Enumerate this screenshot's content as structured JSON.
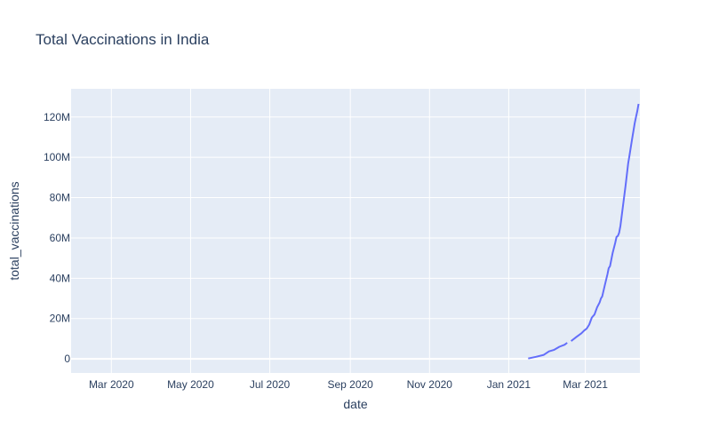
{
  "chart_data": {
    "type": "line",
    "title": "Total Vaccinations in India",
    "xlabel": "date",
    "ylabel": "total_vaccinations",
    "x_tick_labels": [
      "Mar 2020",
      "May 2020",
      "Jul 2020",
      "Sep 2020",
      "Nov 2020",
      "Jan 2021",
      "Mar 2021"
    ],
    "y_tick_labels": [
      "0",
      "20M",
      "40M",
      "60M",
      "80M",
      "100M",
      "120M"
    ],
    "x_ticks": [
      "2020-03-01",
      "2020-05-01",
      "2020-07-01",
      "2020-09-01",
      "2020-11-01",
      "2021-01-01",
      "2021-03-01"
    ],
    "y_ticks": [
      0,
      20000000,
      40000000,
      60000000,
      80000000,
      100000000,
      120000000
    ],
    "xlim": [
      "2020-01-30",
      "2021-04-12"
    ],
    "ylim": [
      -7000000,
      134000000
    ],
    "grid": true,
    "colors": {
      "line": "#636efa",
      "plot_bg": "#e5ecf6",
      "grid": "#ffffff",
      "text": "#2a3f5f"
    },
    "series": [
      {
        "segments": [
          [
            [
              "2021-01-16",
              200000
            ],
            [
              "2021-01-22",
              1000000
            ],
            [
              "2021-01-28",
              2000000
            ],
            [
              "2021-02-01",
              3700000
            ],
            [
              "2021-02-05",
              4500000
            ],
            [
              "2021-02-09",
              6000000
            ],
            [
              "2021-02-13",
              7000000
            ],
            [
              "2021-02-15",
              8000000
            ]
          ],
          [
            [
              "2021-02-18",
              8800000
            ],
            [
              "2021-02-22",
              10800000
            ],
            [
              "2021-02-26",
              12700000
            ],
            [
              "2021-02-28",
              14000000
            ],
            [
              "2021-03-02",
              15000000
            ],
            [
              "2021-03-04",
              17000000
            ],
            [
              "2021-03-06",
              20500000
            ],
            [
              "2021-03-08",
              22000000
            ],
            [
              "2021-03-10",
              25500000
            ],
            [
              "2021-03-12",
              28000000
            ],
            [
              "2021-03-13",
              30000000
            ],
            [
              "2021-03-14",
              31000000
            ],
            [
              "2021-03-16",
              36500000
            ],
            [
              "2021-03-18",
              42000000
            ],
            [
              "2021-03-19",
              45000000
            ],
            [
              "2021-03-20",
              46000000
            ],
            [
              "2021-03-22",
              52500000
            ],
            [
              "2021-03-24",
              57500000
            ],
            [
              "2021-03-25",
              60500000
            ],
            [
              "2021-03-26",
              61000000
            ],
            [
              "2021-03-27",
              62500000
            ],
            [
              "2021-03-28",
              66000000
            ],
            [
              "2021-03-30",
              76000000
            ],
            [
              "2021-04-01",
              86000000
            ],
            [
              "2021-04-03",
              97000000
            ],
            [
              "2021-04-04",
              101000000
            ],
            [
              "2021-04-06",
              109000000
            ],
            [
              "2021-04-08",
              117000000
            ],
            [
              "2021-04-09",
              120000000
            ],
            [
              "2021-04-10",
              123000000
            ],
            [
              "2021-04-11",
              126500000
            ]
          ]
        ]
      }
    ]
  }
}
